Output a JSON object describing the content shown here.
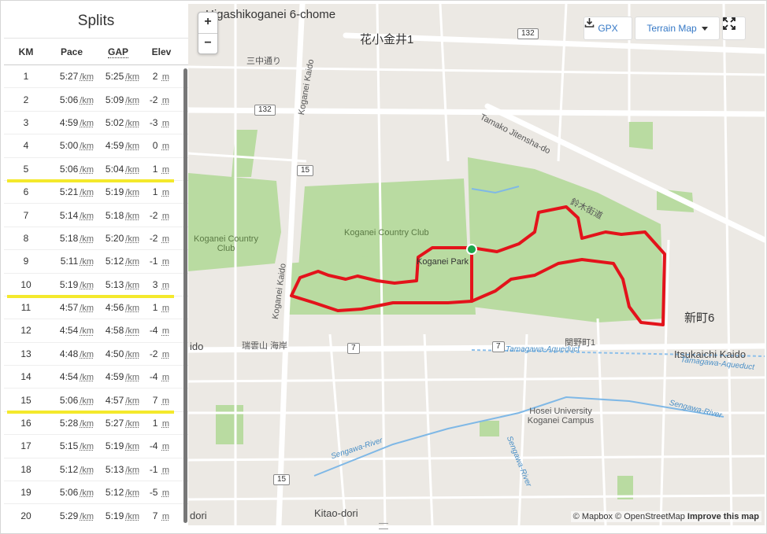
{
  "splits": {
    "title": "Splits",
    "headers": {
      "km": "KM",
      "pace": "Pace",
      "gap": "GAP",
      "elev": "Elev"
    },
    "pace_unit": "/km",
    "elev_unit": "m",
    "rows": [
      {
        "km": "1",
        "pace": "5:27",
        "gap": "5:25",
        "elev": "2"
      },
      {
        "km": "2",
        "pace": "5:06",
        "gap": "5:09",
        "elev": "-2"
      },
      {
        "km": "3",
        "pace": "4:59",
        "gap": "5:02",
        "elev": "-3"
      },
      {
        "km": "4",
        "pace": "5:00",
        "gap": "4:59",
        "elev": "0"
      },
      {
        "km": "5",
        "pace": "5:06",
        "gap": "5:04",
        "elev": "1"
      },
      {
        "km": "6",
        "pace": "5:21",
        "gap": "5:19",
        "elev": "1"
      },
      {
        "km": "7",
        "pace": "5:14",
        "gap": "5:18",
        "elev": "-2"
      },
      {
        "km": "8",
        "pace": "5:18",
        "gap": "5:20",
        "elev": "-2"
      },
      {
        "km": "9",
        "pace": "5:11",
        "gap": "5:12",
        "elev": "-1"
      },
      {
        "km": "10",
        "pace": "5:19",
        "gap": "5:13",
        "elev": "3"
      },
      {
        "km": "11",
        "pace": "4:57",
        "gap": "4:56",
        "elev": "1"
      },
      {
        "km": "12",
        "pace": "4:54",
        "gap": "4:58",
        "elev": "-4"
      },
      {
        "km": "13",
        "pace": "4:48",
        "gap": "4:50",
        "elev": "-2"
      },
      {
        "km": "14",
        "pace": "4:54",
        "gap": "4:59",
        "elev": "-4"
      },
      {
        "km": "15",
        "pace": "5:06",
        "gap": "4:57",
        "elev": "7"
      },
      {
        "km": "16",
        "pace": "5:28",
        "gap": "5:27",
        "elev": "1"
      },
      {
        "km": "17",
        "pace": "5:15",
        "gap": "5:19",
        "elev": "-4"
      },
      {
        "km": "18",
        "pace": "5:12",
        "gap": "5:13",
        "elev": "-1"
      },
      {
        "km": "19",
        "pace": "5:06",
        "gap": "5:12",
        "elev": "-5"
      },
      {
        "km": "20",
        "pace": "5:29",
        "gap": "5:19",
        "elev": "7"
      }
    ],
    "highlighted_after_km": [
      "5",
      "10",
      "15"
    ]
  },
  "map": {
    "zoom_in": "+",
    "zoom_out": "−",
    "gpx_label": "GPX",
    "terrain_label": "Terrain Map",
    "attribution": {
      "mapbox": "© Mapbox",
      "osm": "© OpenStreetMap",
      "improve": "Improve this map"
    },
    "labels": {
      "top_area": "Higashikoganei 6-chome",
      "hanakoganei": "花小金井1",
      "sanchu": "三中通り",
      "koganei_kaido_n": "Koganei Kaido",
      "koganei_kaido_s": "Koganei Kaido",
      "tamako": "Tamako Jitensha-do",
      "suzuki": "鈴木街道",
      "cc_west": "Koganei Country Club",
      "cc_center": "Koganei Country Club",
      "park": "Koganei Park",
      "shinmachi": "新町6",
      "itsukaichi": "Itsukaichi Kaido",
      "aqueduct_w": "Tamagawa-Aqueduct",
      "aqueduct_e": "Tamagawa-Aqueduct",
      "sekino": "関野町1",
      "zuiun": "瑞雲山 海岸",
      "hosei": "Hosei University Koganei Campus",
      "sengawa_w": "Sengawa-River",
      "sengawa_c": "Sengawa-River",
      "sengawa_e": "Sengawa-River",
      "kitao": "Kitao-dori",
      "dori": "dori",
      "ido": "ido"
    },
    "shields": {
      "r132a": "132",
      "r132b": "132",
      "r15a": "15",
      "r15b": "15",
      "r7a": "7",
      "r7b": "7"
    },
    "route_color": "#e3131b",
    "start_color": "#1aa64a"
  }
}
